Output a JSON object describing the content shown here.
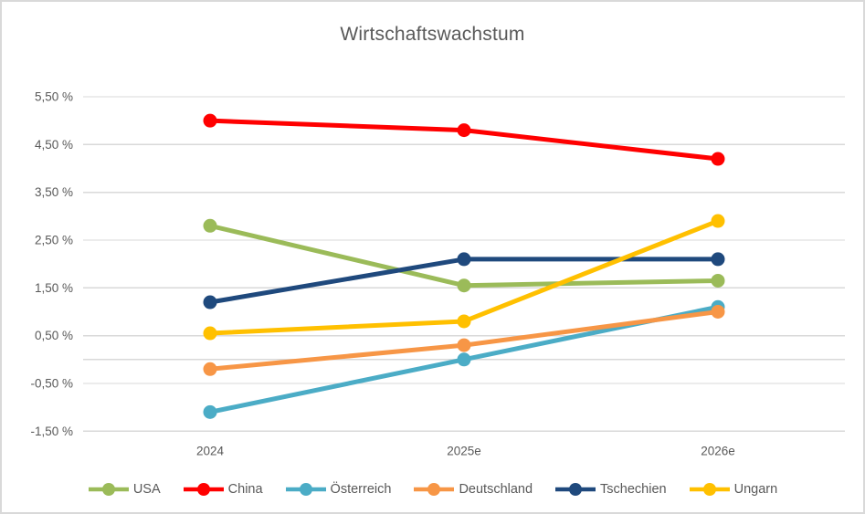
{
  "title": "Wirtschaftswachstum",
  "chart_data": {
    "type": "line",
    "title": "Wirtschaftswachstum",
    "x": [
      "2024",
      "2025e",
      "2026e"
    ],
    "series": [
      {
        "name": "USA",
        "color": "#9BBB59",
        "values": [
          2.8,
          1.55,
          1.65
        ]
      },
      {
        "name": "China",
        "color": "#FF0000",
        "values": [
          5.0,
          4.8,
          4.2
        ]
      },
      {
        "name": "Österreich",
        "color": "#4BACC6",
        "values": [
          -1.1,
          0.0,
          1.1
        ]
      },
      {
        "name": "Deutschland",
        "color": "#F79646",
        "values": [
          -0.2,
          0.3,
          1.0
        ]
      },
      {
        "name": "Tschechien",
        "color": "#1F497D",
        "values": [
          1.2,
          2.1,
          2.1
        ]
      },
      {
        "name": "Ungarn",
        "color": "#FFC000",
        "values": [
          0.55,
          0.8,
          2.9
        ]
      }
    ],
    "ylim": [
      -1.5,
      5.5
    ],
    "y_major_unit": 1.0,
    "y_tick_labels": [
      "5,50 %",
      "4,50 %",
      "3,50 %",
      "2,50 %",
      "1,50 %",
      "0,50 %",
      "-0,50 %",
      "-1,50 %"
    ],
    "has_zero_axis_line": true,
    "grid": true,
    "legend_position": "bottom",
    "colors": {
      "gridline": "#D9D9D9",
      "axis_text": "#595959",
      "title_text": "#595959",
      "background": "#FFFFFF",
      "border": "#D9D9D9"
    }
  }
}
